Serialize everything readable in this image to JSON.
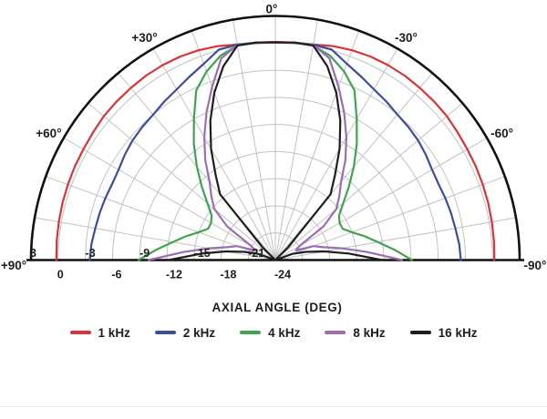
{
  "chart_data": {
    "type": "line",
    "variant": "half-polar-directivity",
    "title": "",
    "xlabel": "AXIAL ANGLE (DEG)",
    "legend_position": "bottom",
    "grid": {
      "on": true,
      "color": "#c2c2c2",
      "spoke_step_deg": 10
    },
    "radial_axis": {
      "unit": "dB",
      "min": -24,
      "max": 3,
      "step": 3,
      "ticks_above_baseline": [
        {
          "db": 3,
          "label": "3"
        },
        {
          "db": -3,
          "label": "-3"
        },
        {
          "db": -9,
          "label": "-9"
        },
        {
          "db": -15,
          "label": "-15"
        },
        {
          "db": -21,
          "label": "-21"
        }
      ],
      "ticks_below_baseline": [
        {
          "db": 0,
          "label": "0"
        },
        {
          "db": -6,
          "label": "-6"
        },
        {
          "db": -12,
          "label": "-12"
        },
        {
          "db": -18,
          "label": "-18"
        },
        {
          "db": -24,
          "label": "-24"
        }
      ]
    },
    "angle_ticks": [
      {
        "angle": 0,
        "label": "0°"
      },
      {
        "angle": 30,
        "label": "+30°"
      },
      {
        "angle": -30,
        "label": "-30°"
      },
      {
        "angle": 60,
        "label": "+60°"
      },
      {
        "angle": -60,
        "label": "-60°"
      },
      {
        "angle": 90,
        "label": "+90°"
      },
      {
        "angle": -90,
        "label": "-90°"
      }
    ],
    "x_angles_deg": [
      -90,
      -85,
      -80,
      -75,
      -70,
      -65,
      -60,
      -55,
      -50,
      -45,
      -40,
      -35,
      -30,
      -25,
      -20,
      -15,
      -10,
      -5,
      0,
      5,
      10,
      15,
      20,
      25,
      30,
      35,
      40,
      45,
      50,
      55,
      60,
      65,
      70,
      75,
      80,
      85,
      90
    ],
    "series": [
      {
        "name": "1 kHz",
        "color": "#d93438",
        "values": [
          0.2,
          0.25,
          0.3,
          0.35,
          0.4,
          0.45,
          0.5,
          0.6,
          0.75,
          0.8,
          0.85,
          0.9,
          0.9,
          0.85,
          0.7,
          0.5,
          0.2,
          0.1,
          0.05,
          0.1,
          0.2,
          0.5,
          0.7,
          0.85,
          0.9,
          0.9,
          0.85,
          0.8,
          0.75,
          0.6,
          0.5,
          0.45,
          0.4,
          0.35,
          0.3,
          0.25,
          0.2
        ]
      },
      {
        "name": "2 kHz",
        "color": "#3e4c9d",
        "values": [
          -3.5,
          -3.6,
          -3.8,
          -3.9,
          -4,
          -4.1,
          -4,
          -3.7,
          -3.4,
          -3.2,
          -3,
          -2.6,
          -2.2,
          -1.6,
          -0.9,
          0.1,
          0.2,
          0.15,
          0.1,
          0.15,
          0.2,
          0.1,
          -0.9,
          -1.6,
          -2.2,
          -2.6,
          -3,
          -3.2,
          -3.4,
          -3.7,
          -4,
          -4.1,
          -4,
          -3.9,
          -3.8,
          -3.6,
          -3.5
        ]
      },
      {
        "name": "4 kHz",
        "color": "#41a352",
        "values": [
          -8.9,
          -10.8,
          -12.5,
          -13.8,
          -15,
          -15.8,
          -15.8,
          -15.4,
          -14.2,
          -12.5,
          -10.5,
          -8.3,
          -6,
          -3.3,
          -1.8,
          -0.6,
          0.1,
          0.15,
          0.1,
          0.15,
          0.1,
          -0.6,
          -1.8,
          -3.3,
          -6,
          -8.3,
          -10.5,
          -12.5,
          -14.2,
          -15.4,
          -15.8,
          -15.8,
          -15,
          -13.8,
          -12.5,
          -10.8,
          -8.9
        ]
      },
      {
        "name": "8 kHz",
        "color": "#9d6db0",
        "values": [
          -10,
          -13.8,
          -16.5,
          -18.5,
          -19.5,
          -21.5,
          -21,
          -17.5,
          -15.2,
          -14,
          -12.7,
          -10.5,
          -8.3,
          -6,
          -3.6,
          -0.9,
          0.15,
          0.15,
          0.1,
          0.15,
          0.15,
          -0.9,
          -3.6,
          -6,
          -8.3,
          -10.5,
          -12.7,
          -14,
          -15.2,
          -17.5,
          -21,
          -21.5,
          -19.5,
          -18.5,
          -16.5,
          -13.8,
          -10
        ]
      },
      {
        "name": "16 kHz",
        "color": "#1e1e1e",
        "values": [
          -12.2,
          -15.8,
          -18.5,
          -20.5,
          -22,
          -24,
          -26,
          -26,
          -26,
          -22,
          -14.5,
          -12.5,
          -9.8,
          -7,
          -4.3,
          -1.8,
          0.1,
          0.15,
          0.1,
          0.15,
          0.1,
          -1.8,
          -4.3,
          -7,
          -9.8,
          -12.5,
          -14.5,
          -22,
          -26,
          -26,
          -26,
          -24,
          -22,
          -20.5,
          -18.5,
          -15.8,
          -12.2
        ]
      }
    ]
  }
}
